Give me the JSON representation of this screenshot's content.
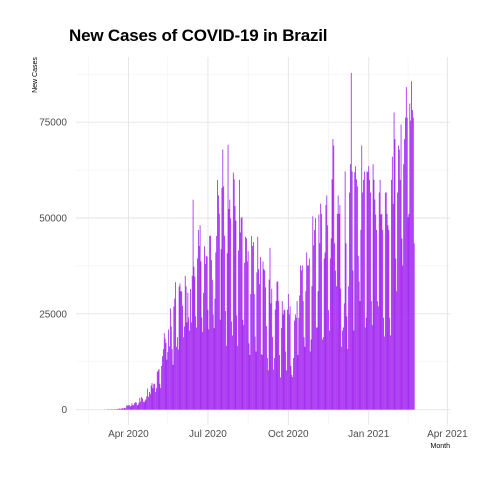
{
  "chart_data": {
    "type": "bar",
    "title": "New Cases of COVID-19 in Brazil",
    "xlabel": "Month",
    "ylabel": "New Cases",
    "bar_color": "#a020f0",
    "grid": true,
    "xlim": [
      "2020-02-01",
      "2021-04-04"
    ],
    "ylim": [
      -4000,
      92000
    ],
    "y_ticks": [
      {
        "value": 0,
        "label": "0"
      },
      {
        "value": 25000,
        "label": "25000"
      },
      {
        "value": 50000,
        "label": "50000"
      },
      {
        "value": 75000,
        "label": "75000"
      }
    ],
    "x_ticks": [
      {
        "date": "2020-04-01",
        "label": "Apr 2020"
      },
      {
        "date": "2020-07-01",
        "label": "Jul 2020"
      },
      {
        "date": "2020-10-01",
        "label": "Oct 2020"
      },
      {
        "date": "2021-01-01",
        "label": "Jan 2021"
      },
      {
        "date": "2021-04-01",
        "label": "Apr 2021"
      }
    ],
    "x_minor_ticks": [
      "2020-02-15",
      "2020-05-16",
      "2020-08-16",
      "2020-11-16",
      "2021-02-15"
    ],
    "y_minor_ticks": [
      12500,
      37500,
      62500,
      87500
    ],
    "daily": {
      "start_date": "2020-02-26",
      "values": [
        0,
        0,
        0,
        0,
        0,
        0,
        0,
        0,
        1,
        0,
        0,
        2,
        5,
        0,
        6,
        4,
        23,
        10,
        37,
        23,
        42,
        57,
        129,
        230,
        98,
        343,
        206,
        317,
        416,
        228,
        458,
        468,
        349,
        1138,
        1071,
        1119,
        1208,
        852,
        926,
        1661,
        1146,
        1222,
        1695,
        1930,
        1865,
        1090,
        1238,
        1832,
        3058,
        2105,
        3257,
        2917,
        2055,
        1927,
        2336,
        2678,
        3503,
        5514,
        3379,
        4613,
        4075,
        6276,
        6935,
        5588,
        6633,
        6794,
        4588,
        5632,
        9888,
        10222,
        10611,
        6760,
        5632,
        11385,
        13944,
        15813,
        19951,
        18508,
        17406,
        13051,
        15023,
        20896,
        16508,
        26417,
        21704,
        15813,
        11687,
        26928,
        28936,
        33274,
        16409,
        18912,
        15654,
        32091,
        32913,
        30925,
        30830,
        27075,
        18921,
        21704,
        34918,
        32188,
        22765,
        30476,
        24052,
        20647,
        31473,
        22765,
        34918,
        54771,
        37278,
        34666,
        24358,
        21432,
        39436,
        46860,
        42725,
        48105,
        38693,
        24052,
        20286,
        30476,
        42619,
        37997,
        40131,
        39924,
        26051,
        20947,
        45305,
        45403,
        39023,
        33846,
        24831,
        21272,
        28936,
        41008,
        45305,
        59961,
        55891,
        51147,
        23467,
        41857,
        57837,
        67860,
        58271,
        45392,
        25800,
        16641,
        40816,
        69074,
        52383,
        54801,
        49970,
        23010,
        19373,
        61850,
        60091,
        53139,
        49298,
        24578,
        16641,
        41576,
        59961,
        46234,
        49970,
        50230,
        23421,
        22048,
        38307,
        45105,
        44684,
        38690,
        41350,
        17298,
        14279,
        30168,
        45323,
        42659,
        43718,
        30168,
        19089,
        15155,
        35816,
        45102,
        36653,
        32817,
        39797,
        14521,
        14279,
        38690,
        36653,
        36303,
        31911,
        21792,
        13498,
        10273,
        33922,
        42229,
        27750,
        31553,
        18912,
        10436,
        13439,
        26105,
        28325,
        33413,
        33413,
        28325,
        14279,
        8429,
        21303,
        28325,
        24818,
        25957,
        26105,
        15155,
        10228,
        26105,
        30168,
        24818,
        26979,
        11385,
        9058,
        8502,
        13493,
        23227,
        24818,
        23976,
        28325,
        14279,
        23976,
        29787,
        37614,
        36303,
        37614,
        28325,
        18912,
        16409,
        30914,
        41008,
        37614,
        37614,
        39436,
        15155,
        18304,
        32191,
        50434,
        42862,
        46884,
        49932,
        21432,
        21432,
        30914,
        50909,
        43412,
        53725,
        51088,
        18304,
        18912,
        39436,
        41008,
        53347,
        55891,
        48105,
        25957,
        20647,
        39436,
        44684,
        60091,
        70574,
        68897,
        43412,
        36303,
        32191,
        51088,
        55891,
        51088,
        53347,
        31553,
        16409,
        20647,
        21432,
        27750,
        62146,
        43412,
        24358,
        15813,
        32191,
        56648,
        64025,
        87843,
        62146,
        36303,
        20647,
        61963,
        63520,
        60091,
        58271,
        40131,
        33413,
        28325,
        46884,
        68897,
        56648,
        59961,
        62146,
        21432,
        23976,
        62146,
        61963,
        63520,
        59961,
        56648,
        28325,
        22048,
        64025,
        59961,
        54801,
        50909,
        46884,
        28325,
        26979,
        56648,
        59961,
        50909,
        51088,
        46884,
        23976,
        19089,
        56648,
        56648,
        51088,
        48105,
        46884,
        23976,
        19373,
        59961,
        65998,
        53725,
        77513,
        70574,
        39436,
        30914,
        56648,
        68897,
        67860,
        59961,
        74376,
        44684,
        37614,
        64025,
        70574,
        76178,
        84124,
        76178,
        50230,
        51088,
        79876,
        75412,
        85663,
        78163,
        76178,
        43412
      ]
    }
  }
}
